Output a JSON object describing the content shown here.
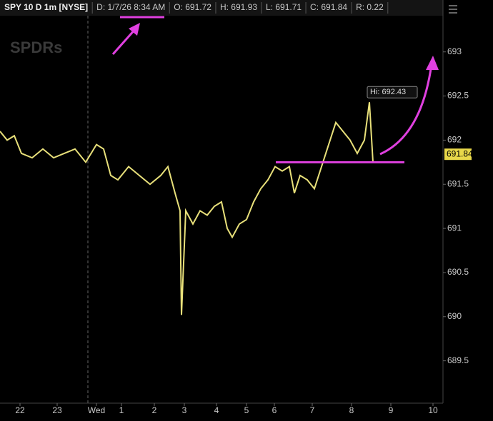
{
  "header": {
    "items": [
      "SPY 10 D 1m [NYSE]",
      "D: 1/7/26 8:34 AM",
      "O: 691.72",
      "H: 691.93",
      "L: 691.71",
      "C: 691.84",
      "R: 0.22"
    ]
  },
  "watermark": "SPDRs",
  "chart_data": {
    "type": "line",
    "x": [
      0,
      10,
      20,
      30,
      45,
      60,
      75,
      90,
      105,
      120,
      135,
      145,
      155,
      165,
      180,
      195,
      210,
      225,
      235,
      245,
      252,
      254,
      260,
      270,
      280,
      290,
      300,
      310,
      318,
      325,
      335,
      345,
      355,
      365,
      375,
      385,
      395,
      405,
      412,
      420,
      430,
      440,
      450,
      460,
      470,
      480,
      490,
      500,
      510,
      517,
      522
    ],
    "series": [
      {
        "name": "SPY",
        "color": "#e8e07a",
        "values": [
          692.1,
          692.0,
          692.05,
          691.85,
          691.8,
          691.9,
          691.8,
          691.85,
          691.9,
          691.75,
          691.95,
          691.9,
          691.6,
          691.55,
          691.7,
          691.6,
          691.5,
          691.6,
          691.7,
          691.4,
          691.2,
          690.02,
          691.2,
          691.05,
          691.2,
          691.15,
          691.25,
          691.3,
          691.0,
          690.9,
          691.05,
          691.1,
          691.3,
          691.45,
          691.55,
          691.7,
          691.65,
          691.7,
          691.4,
          691.6,
          691.55,
          691.45,
          691.7,
          691.95,
          692.2,
          692.1,
          692.0,
          691.85,
          692.0,
          692.43,
          691.75
        ]
      }
    ],
    "xlim": [
      0,
      620
    ],
    "xticks": [
      {
        "value": 28,
        "label": "22"
      },
      {
        "value": 80,
        "label": "23"
      },
      {
        "value": 135,
        "label": "Wed"
      },
      {
        "value": 170,
        "label": "1"
      },
      {
        "value": 216,
        "label": "2"
      },
      {
        "value": 258,
        "label": "3"
      },
      {
        "value": 303,
        "label": "4"
      },
      {
        "value": 345,
        "label": "5"
      },
      {
        "value": 384,
        "label": "6"
      },
      {
        "value": 437,
        "label": "7"
      },
      {
        "value": 492,
        "label": "8"
      },
      {
        "value": 547,
        "label": "9"
      },
      {
        "value": 606,
        "label": "10"
      }
    ],
    "ylim": [
      689.02,
      693.41
    ],
    "yticks": [
      689.5,
      690,
      690.5,
      691,
      691.5,
      692,
      692.5,
      693
    ],
    "last_price": 691.84,
    "annotation": "Hi: 692.43"
  }
}
